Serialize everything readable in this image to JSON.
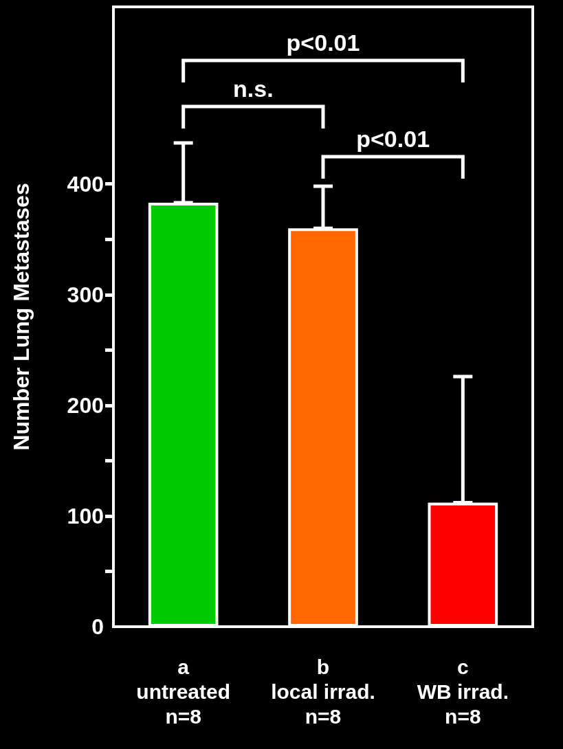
{
  "chart_data": {
    "type": "bar",
    "ylabel": "Number Lung Metastases",
    "categories": [
      "a\nuntreated\nn=8",
      "b\nlocal irrad.\nn=8",
      "c\nWB irrad.\nn=8"
    ],
    "values": [
      383,
      360,
      112
    ],
    "colors": [
      "#00cc00",
      "#ff6600",
      "#ff0000"
    ],
    "errors": [
      [
        383,
        437
      ],
      [
        360,
        398
      ],
      [
        112,
        226
      ]
    ],
    "ylim": [
      0,
      560
    ],
    "yticks": [
      0,
      {
        "value": 50,
        "label": null
      },
      100,
      {
        "value": 150,
        "label": null
      },
      200,
      {
        "value": 250,
        "label": null
      },
      300,
      {
        "value": 350,
        "label": null
      },
      400
    ],
    "annotations": [
      "p<0.01",
      "n.s.",
      "p<0.01"
    ],
    "grid": false
  }
}
